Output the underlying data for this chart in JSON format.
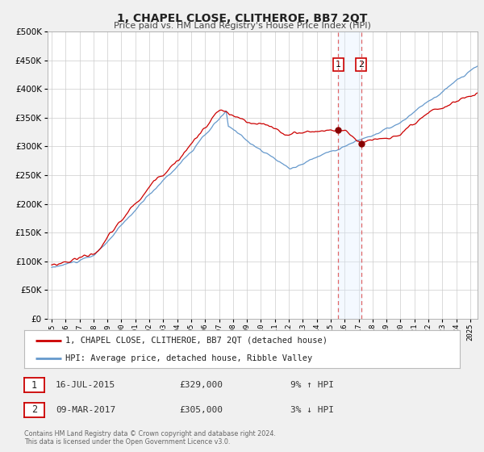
{
  "title": "1, CHAPEL CLOSE, CLITHEROE, BB7 2QT",
  "subtitle": "Price paid vs. HM Land Registry's House Price Index (HPI)",
  "legend_line1": "1, CHAPEL CLOSE, CLITHEROE, BB7 2QT (detached house)",
  "legend_line2": "HPI: Average price, detached house, Ribble Valley",
  "transaction1_date": "16-JUL-2015",
  "transaction1_price": "£329,000",
  "transaction1_hpi": "9% ↑ HPI",
  "transaction2_date": "09-MAR-2017",
  "transaction2_price": "£305,000",
  "transaction2_hpi": "3% ↓ HPI",
  "footer1": "Contains HM Land Registry data © Crown copyright and database right 2024.",
  "footer2": "This data is licensed under the Open Government Licence v3.0.",
  "red_line_color": "#cc0000",
  "blue_line_color": "#6699cc",
  "marker1_date_num": 2015.54,
  "marker1_value": 329000,
  "marker2_date_num": 2017.18,
  "marker2_value": 305000,
  "vline1_date": 2015.54,
  "vline2_date": 2017.18,
  "shade_color": "#ddeeff",
  "ylim": [
    0,
    500000
  ],
  "xlim_start": 1994.7,
  "xlim_end": 2025.5,
  "background_color": "#f0f0f0",
  "plot_bg_color": "#ffffff",
  "grid_color": "#cccccc",
  "yticks": [
    0,
    50000,
    100000,
    150000,
    200000,
    250000,
    300000,
    350000,
    400000,
    450000,
    500000
  ],
  "xtick_years": [
    1995,
    1996,
    1997,
    1998,
    1999,
    2000,
    2001,
    2002,
    2003,
    2004,
    2005,
    2006,
    2007,
    2008,
    2009,
    2010,
    2011,
    2012,
    2013,
    2014,
    2015,
    2016,
    2017,
    2018,
    2019,
    2020,
    2021,
    2022,
    2023,
    2024,
    2025
  ]
}
